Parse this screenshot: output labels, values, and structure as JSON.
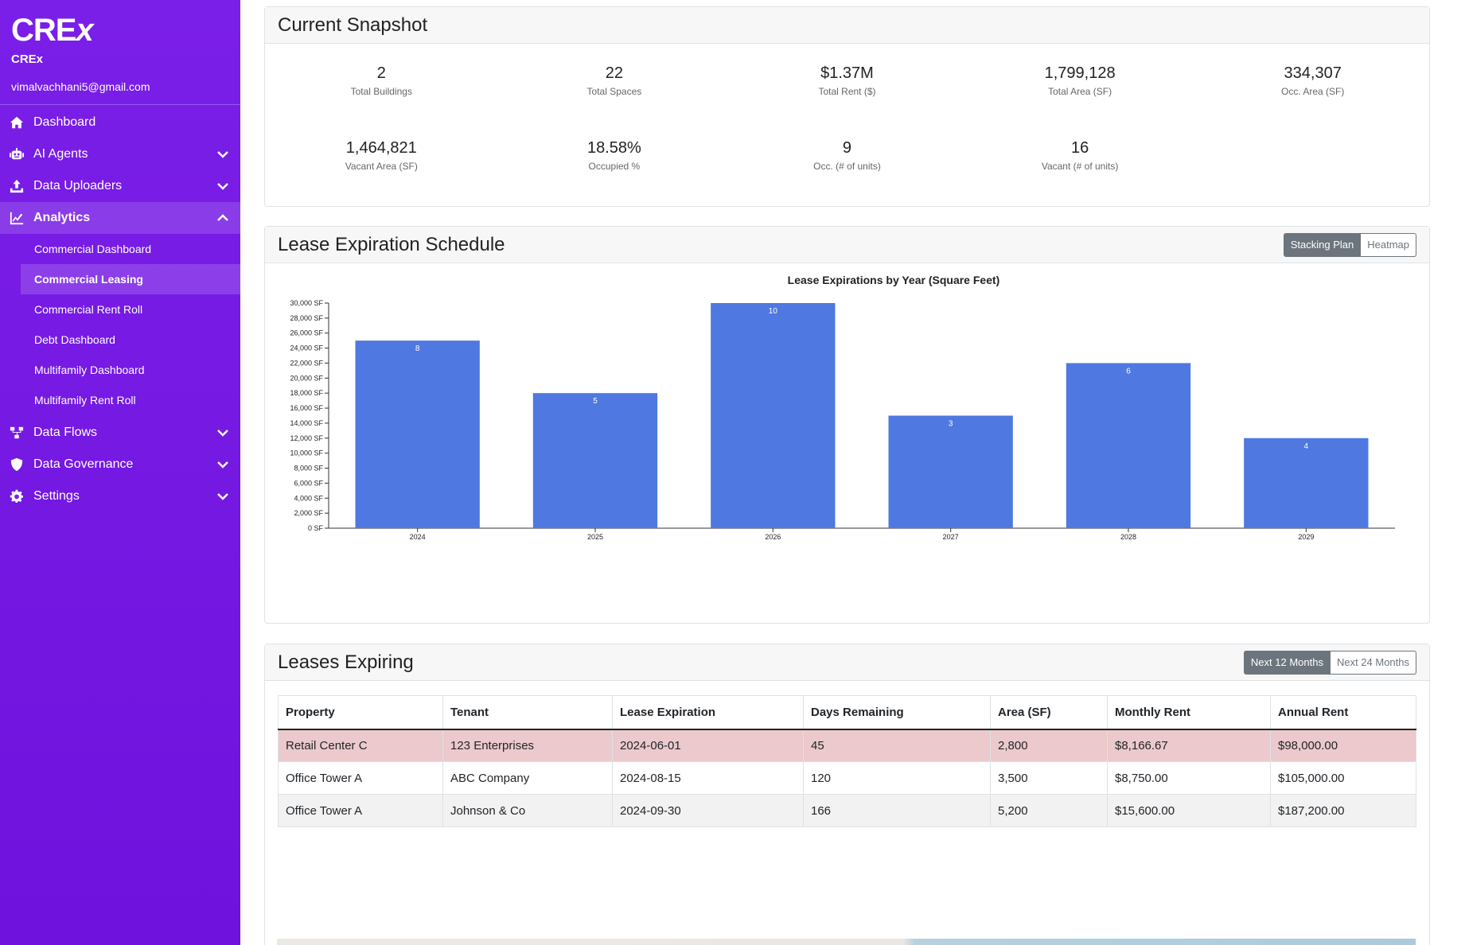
{
  "sidebar": {
    "logo": "CREX",
    "name": "CREx",
    "email": "vimalvachhani5@gmail.com",
    "items": [
      {
        "label": "Dashboard",
        "icon": "home-icon"
      },
      {
        "label": "AI Agents",
        "icon": "robot-icon"
      },
      {
        "label": "Data Uploaders",
        "icon": "upload-icon"
      },
      {
        "label": "Analytics",
        "icon": "line-chart-icon"
      },
      {
        "label": "Data Flows",
        "icon": "sitemap-icon"
      },
      {
        "label": "Data Governance",
        "icon": "shield-icon"
      },
      {
        "label": "Settings",
        "icon": "gear-icon"
      }
    ],
    "analytics_sub": [
      "Commercial Dashboard",
      "Commercial Leasing",
      "Commercial Rent Roll",
      "Debt Dashboard",
      "Multifamily Dashboard",
      "Multifamily Rent Roll"
    ]
  },
  "snapshot": {
    "title": "Current Snapshot",
    "stats": [
      {
        "value": "2",
        "label": "Total Buildings"
      },
      {
        "value": "22",
        "label": "Total Spaces"
      },
      {
        "value": "$1.37M",
        "label": "Total Rent ($)"
      },
      {
        "value": "1,799,128",
        "label": "Total Area (SF)"
      },
      {
        "value": "334,307",
        "label": "Occ. Area (SF)"
      },
      {
        "value": "1,464,821",
        "label": "Vacant Area (SF)"
      },
      {
        "value": "18.58%",
        "label": "Occupied %"
      },
      {
        "value": "9",
        "label": "Occ. (# of units)"
      },
      {
        "value": "16",
        "label": "Vacant (# of units)"
      }
    ]
  },
  "lease_schedule": {
    "title": "Lease Expiration Schedule",
    "toggle": [
      "Stacking Plan",
      "Heatmap"
    ]
  },
  "chart_data": {
    "type": "bar",
    "title": "Lease Expirations by Year (Square Feet)",
    "categories": [
      "2024",
      "2025",
      "2026",
      "2027",
      "2028",
      "2029"
    ],
    "values": [
      25000,
      18000,
      30000,
      15000,
      22000,
      12000
    ],
    "data_labels": [
      "8",
      "5",
      "10",
      "3",
      "6",
      "4"
    ],
    "ylim": [
      0,
      30000
    ],
    "ytick_step": 2000,
    "ytick_suffix": " SF",
    "bar_color": "#4f78e0",
    "grid": false
  },
  "leases": {
    "title": "Leases Expiring",
    "toggle": [
      "Next 12 Months",
      "Next 24 Months"
    ],
    "columns": [
      "Property",
      "Tenant",
      "Lease Expiration",
      "Days Remaining",
      "Area (SF)",
      "Monthly Rent",
      "Annual Rent"
    ],
    "rows": [
      [
        "Retail Center C",
        "123 Enterprises",
        "2024-06-01",
        "45",
        "2,800",
        "$8,166.67",
        "$98,000.00"
      ],
      [
        "Office Tower A",
        "ABC Company",
        "2024-08-15",
        "120",
        "3,500",
        "$8,750.00",
        "$105,000.00"
      ],
      [
        "Office Tower A",
        "Johnson & Co",
        "2024-09-30",
        "166",
        "5,200",
        "$15,600.00",
        "$187,200.00"
      ]
    ]
  }
}
